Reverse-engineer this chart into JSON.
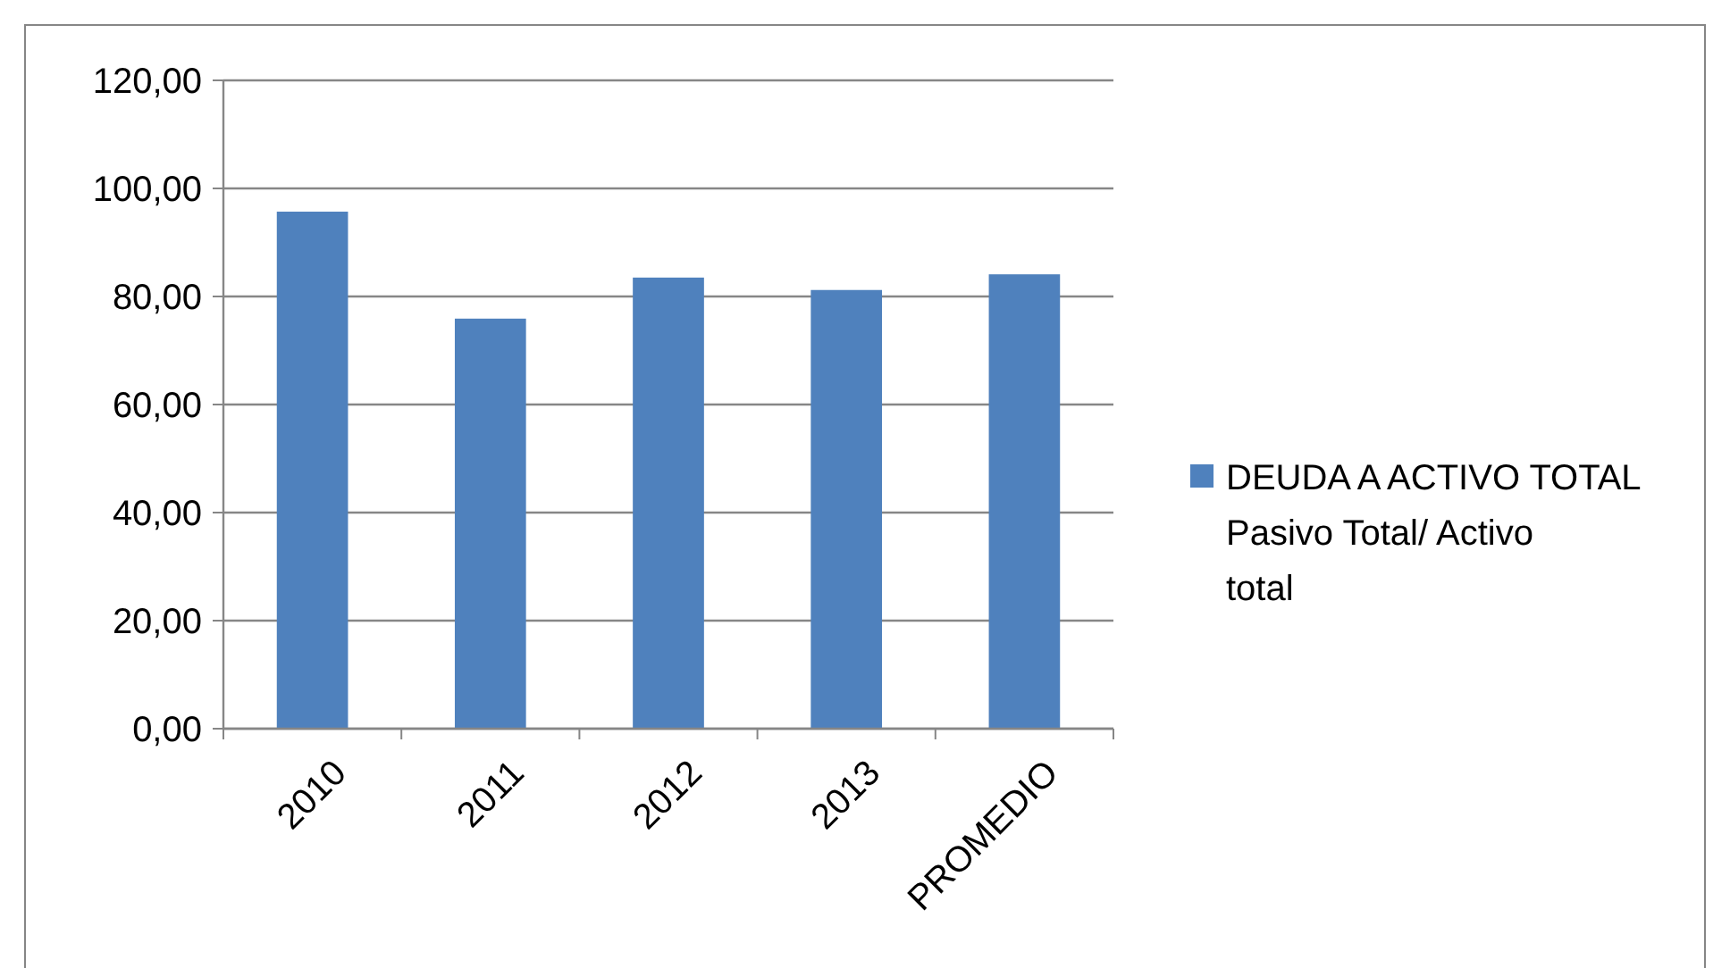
{
  "chart_data": {
    "type": "bar",
    "categories": [
      "2010",
      "2011",
      "2012",
      "2013",
      "PROMEDIO"
    ],
    "series": [
      {
        "name": "DEUDA A ACTIVO TOTAL Pasivo Total/ Activo total",
        "color": "#4f81bd",
        "values": [
          95.7,
          75.9,
          83.5,
          81.2,
          84.1
        ]
      }
    ],
    "ylim": [
      0,
      120
    ],
    "yticks": [
      {
        "value": 0,
        "label": "0,00"
      },
      {
        "value": 20,
        "label": "20,00"
      },
      {
        "value": 40,
        "label": "40,00"
      },
      {
        "value": 60,
        "label": "60,00"
      },
      {
        "value": 80,
        "label": "80,00"
      },
      {
        "value": 100,
        "label": "100,00"
      },
      {
        "value": 120,
        "label": "120,00"
      }
    ],
    "grid": "y",
    "legend": "right"
  }
}
